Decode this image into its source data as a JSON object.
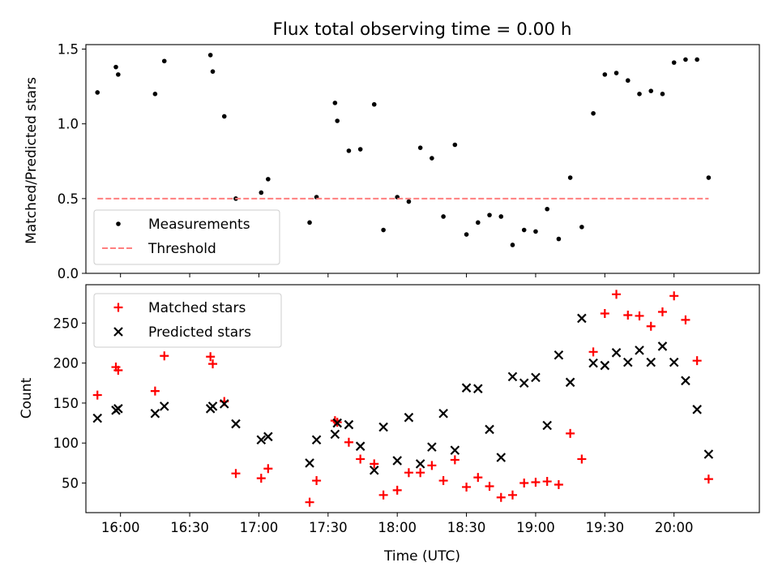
{
  "figure": {
    "title": "Flux total observing time = 0.00 h"
  },
  "chart_data": [
    {
      "type": "scatter",
      "panel": "top",
      "xlabel": "",
      "ylabel": "Matched/Predicted stars",
      "x_range": [
        "15:45",
        "20:37"
      ],
      "ylim": [
        0,
        1.53
      ],
      "yticks": [
        0.0,
        0.5,
        1.0,
        1.5
      ],
      "ytick_labels": [
        "0.0",
        "0.5",
        "1.0",
        "1.5"
      ],
      "grid": false,
      "legend_position": "lower-left",
      "series": [
        {
          "name": "Measurements",
          "kind": "scatter",
          "marker": "dot",
          "color": "#000000",
          "points": [
            [
              "15:50",
              1.21
            ],
            [
              "15:58",
              1.38
            ],
            [
              "15:59",
              1.33
            ],
            [
              "16:15",
              1.2
            ],
            [
              "16:19",
              1.42
            ],
            [
              "16:39",
              1.46
            ],
            [
              "16:40",
              1.35
            ],
            [
              "16:45",
              1.05
            ],
            [
              "16:50",
              0.5
            ],
            [
              "17:01",
              0.54
            ],
            [
              "17:04",
              0.63
            ],
            [
              "17:22",
              0.34
            ],
            [
              "17:25",
              0.51
            ],
            [
              "17:33",
              1.14
            ],
            [
              "17:34",
              1.02
            ],
            [
              "17:39",
              0.82
            ],
            [
              "17:44",
              0.83
            ],
            [
              "17:50",
              1.13
            ],
            [
              "17:54",
              0.29
            ],
            [
              "18:00",
              0.51
            ],
            [
              "18:05",
              0.48
            ],
            [
              "18:10",
              0.84
            ],
            [
              "18:15",
              0.77
            ],
            [
              "18:20",
              0.38
            ],
            [
              "18:25",
              0.86
            ],
            [
              "18:30",
              0.26
            ],
            [
              "18:35",
              0.34
            ],
            [
              "18:40",
              0.39
            ],
            [
              "18:45",
              0.38
            ],
            [
              "18:50",
              0.19
            ],
            [
              "18:55",
              0.29
            ],
            [
              "19:00",
              0.28
            ],
            [
              "19:05",
              0.43
            ],
            [
              "19:10",
              0.23
            ],
            [
              "19:15",
              0.64
            ],
            [
              "19:20",
              0.31
            ],
            [
              "19:25",
              1.07
            ],
            [
              "19:30",
              1.33
            ],
            [
              "19:35",
              1.34
            ],
            [
              "19:40",
              1.29
            ],
            [
              "19:45",
              1.2
            ],
            [
              "19:50",
              1.22
            ],
            [
              "19:55",
              1.2
            ],
            [
              "20:00",
              1.41
            ],
            [
              "20:05",
              1.43
            ],
            [
              "20:10",
              1.43
            ],
            [
              "20:15",
              0.64
            ]
          ]
        },
        {
          "name": "Threshold",
          "kind": "line",
          "style": "dashed",
          "color": "#ff7f7f",
          "points": [
            [
              "15:50",
              0.5
            ],
            [
              "20:15",
              0.5
            ]
          ]
        }
      ]
    },
    {
      "type": "scatter",
      "panel": "bottom",
      "xlabel": "Time (UTC)",
      "ylabel": "Count",
      "x_range": [
        "15:45",
        "20:37"
      ],
      "xticks": [
        "16:00",
        "16:30",
        "17:00",
        "17:30",
        "18:00",
        "18:30",
        "19:00",
        "19:30",
        "20:00"
      ],
      "ylim": [
        13,
        298
      ],
      "yticks": [
        50,
        100,
        150,
        200,
        250
      ],
      "ytick_labels": [
        "50",
        "100",
        "150",
        "200",
        "250"
      ],
      "grid": false,
      "legend_position": "upper-left",
      "series": [
        {
          "name": "Matched stars",
          "kind": "scatter",
          "marker": "plus",
          "color": "#ff0000",
          "points": [
            [
              "15:50",
              160
            ],
            [
              "15:58",
              195
            ],
            [
              "15:59",
              191
            ],
            [
              "16:15",
              165
            ],
            [
              "16:19",
              209
            ],
            [
              "16:39",
              208
            ],
            [
              "16:40",
              199
            ],
            [
              "16:45",
              152
            ],
            [
              "16:50",
              62
            ],
            [
              "17:01",
              56
            ],
            [
              "17:04",
              68
            ],
            [
              "17:22",
              26
            ],
            [
              "17:25",
              53
            ],
            [
              "17:33",
              128
            ],
            [
              "17:34",
              126
            ],
            [
              "17:39",
              101
            ],
            [
              "17:44",
              80
            ],
            [
              "17:50",
              74
            ],
            [
              "17:54",
              35
            ],
            [
              "18:00",
              41
            ],
            [
              "18:05",
              63
            ],
            [
              "18:10",
              63
            ],
            [
              "18:15",
              72
            ],
            [
              "18:20",
              53
            ],
            [
              "18:25",
              79
            ],
            [
              "18:30",
              45
            ],
            [
              "18:35",
              57
            ],
            [
              "18:40",
              46
            ],
            [
              "18:45",
              32
            ],
            [
              "18:50",
              35
            ],
            [
              "18:55",
              50
            ],
            [
              "19:00",
              51
            ],
            [
              "19:05",
              52
            ],
            [
              "19:10",
              48
            ],
            [
              "19:15",
              112
            ],
            [
              "19:20",
              80
            ],
            [
              "19:25",
              214
            ],
            [
              "19:30",
              262
            ],
            [
              "19:35",
              286
            ],
            [
              "19:40",
              260
            ],
            [
              "19:45",
              259
            ],
            [
              "19:50",
              246
            ],
            [
              "19:55",
              264
            ],
            [
              "20:00",
              284
            ],
            [
              "20:05",
              254
            ],
            [
              "20:10",
              203
            ],
            [
              "20:15",
              55
            ]
          ]
        },
        {
          "name": "Predicted stars",
          "kind": "scatter",
          "marker": "x",
          "color": "#000000",
          "points": [
            [
              "15:50",
              131
            ],
            [
              "15:58",
              141
            ],
            [
              "15:59",
              143
            ],
            [
              "16:15",
              137
            ],
            [
              "16:19",
              146
            ],
            [
              "16:39",
              143
            ],
            [
              "16:40",
              146
            ],
            [
              "16:45",
              149
            ],
            [
              "16:50",
              124
            ],
            [
              "17:01",
              104
            ],
            [
              "17:04",
              108
            ],
            [
              "17:22",
              75
            ],
            [
              "17:25",
              104
            ],
            [
              "17:33",
              111
            ],
            [
              "17:34",
              125
            ],
            [
              "17:39",
              123
            ],
            [
              "17:44",
              96
            ],
            [
              "17:50",
              66
            ],
            [
              "17:54",
              120
            ],
            [
              "18:00",
              78
            ],
            [
              "18:05",
              132
            ],
            [
              "18:10",
              74
            ],
            [
              "18:15",
              95
            ],
            [
              "18:20",
              137
            ],
            [
              "18:25",
              91
            ],
            [
              "18:30",
              169
            ],
            [
              "18:35",
              168
            ],
            [
              "18:40",
              117
            ],
            [
              "18:45",
              82
            ],
            [
              "18:50",
              183
            ],
            [
              "18:55",
              175
            ],
            [
              "19:00",
              182
            ],
            [
              "19:05",
              122
            ],
            [
              "19:10",
              210
            ],
            [
              "19:15",
              176
            ],
            [
              "19:20",
              256
            ],
            [
              "19:25",
              200
            ],
            [
              "19:30",
              197
            ],
            [
              "19:35",
              213
            ],
            [
              "19:40",
              201
            ],
            [
              "19:45",
              216
            ],
            [
              "19:50",
              201
            ],
            [
              "19:55",
              221
            ],
            [
              "20:00",
              201
            ],
            [
              "20:05",
              178
            ],
            [
              "20:10",
              142
            ],
            [
              "20:15",
              86
            ]
          ]
        }
      ]
    }
  ]
}
